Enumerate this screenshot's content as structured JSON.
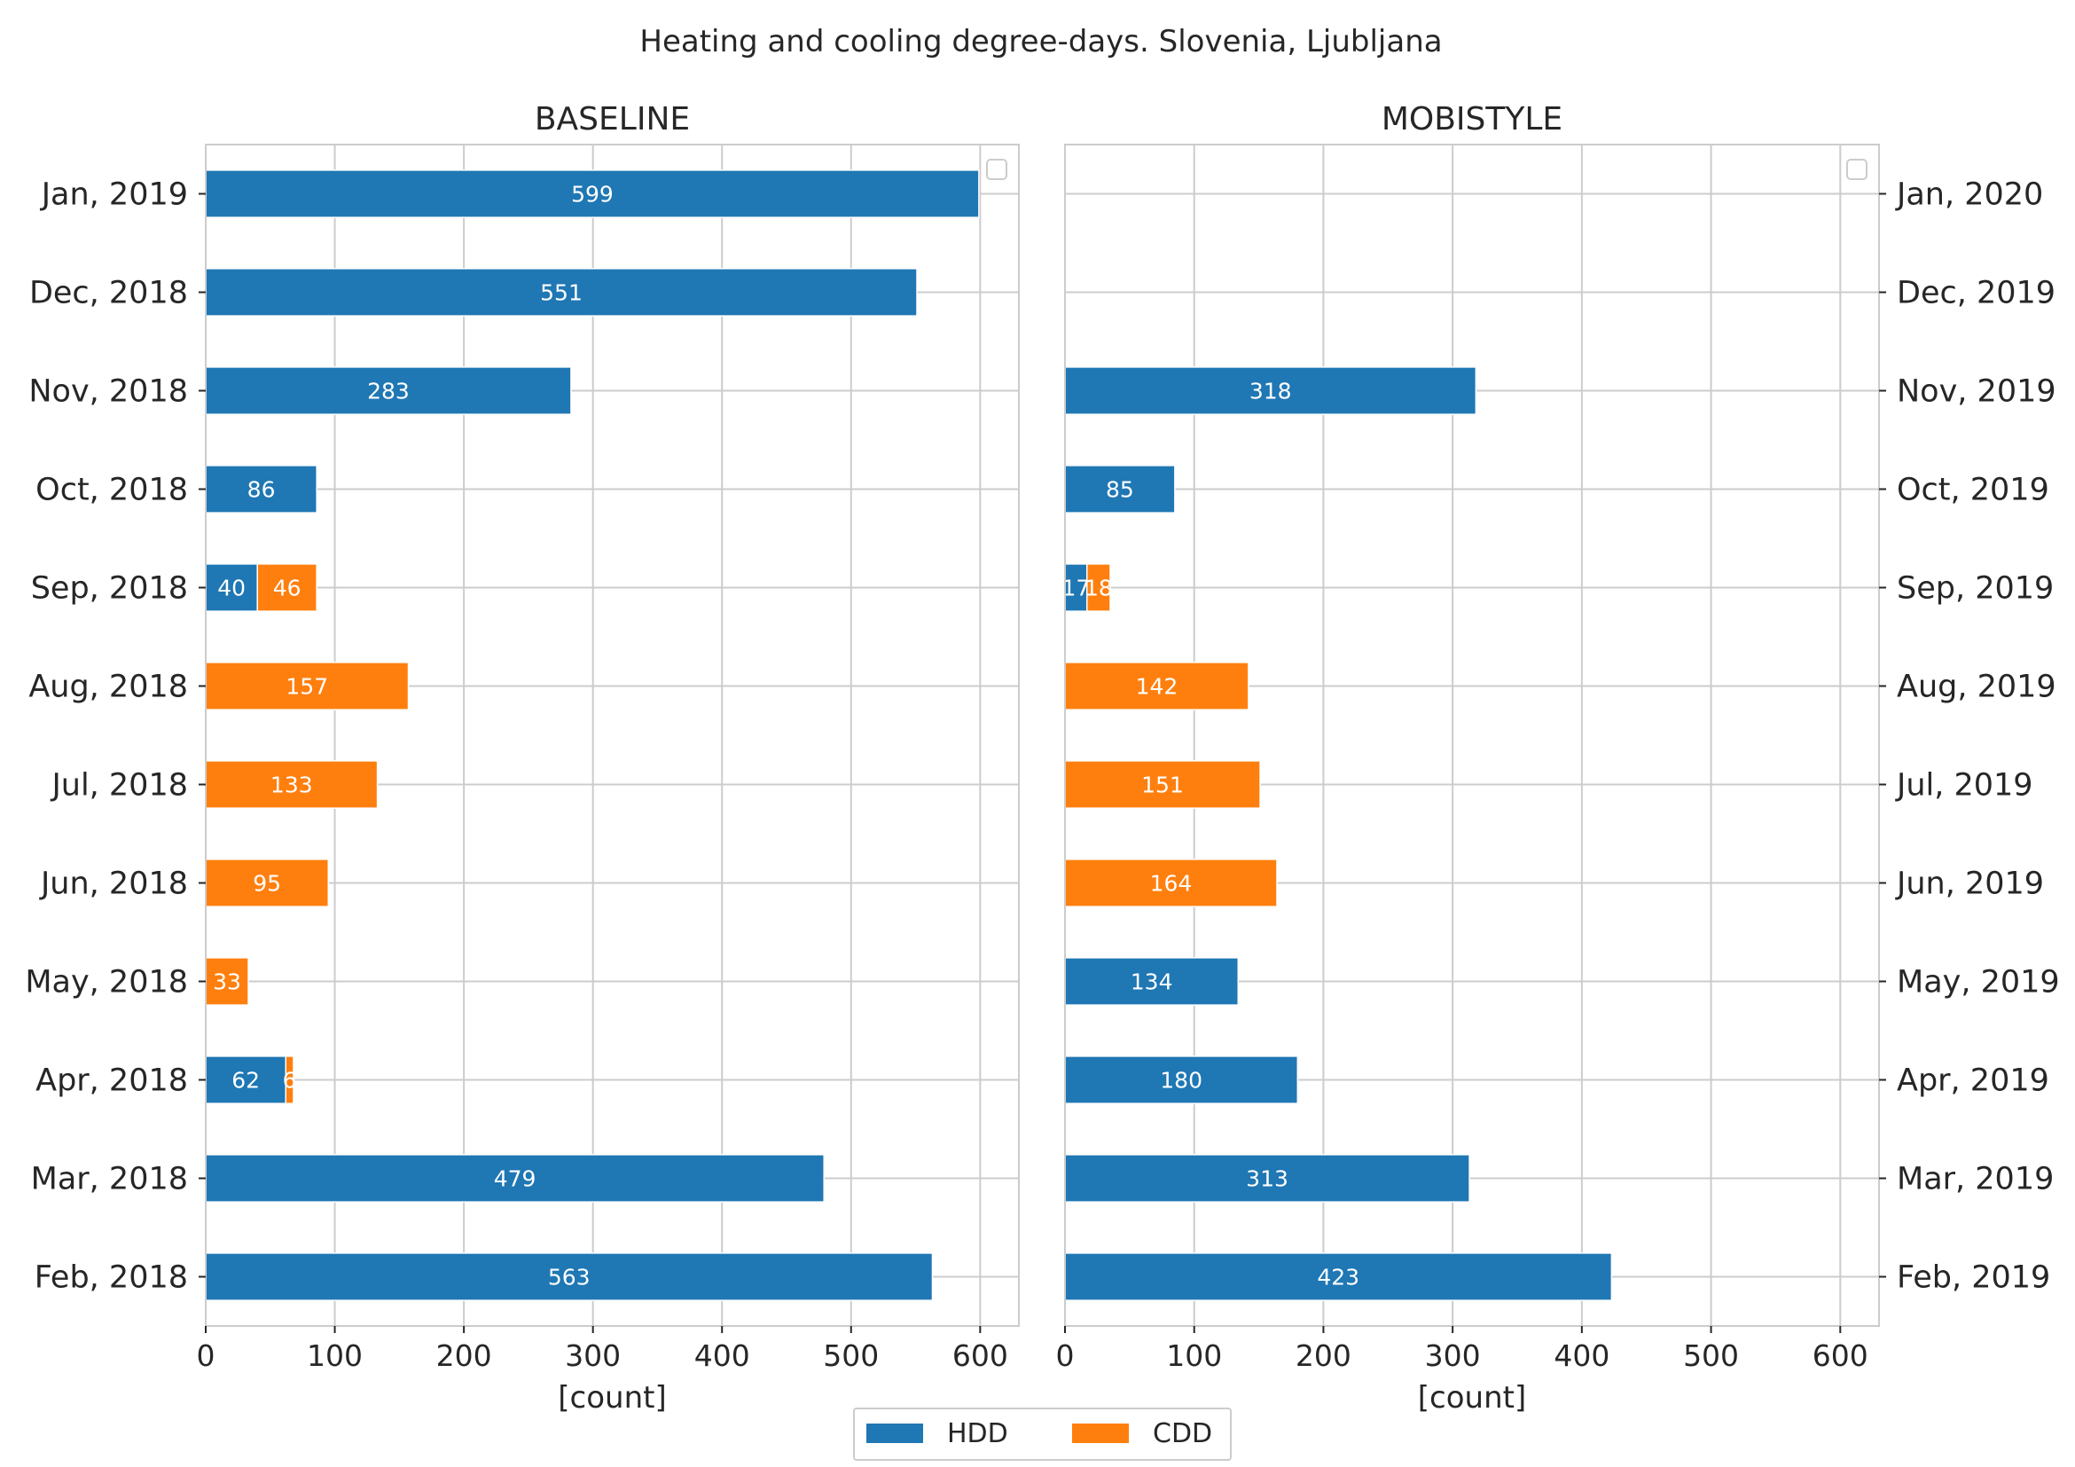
{
  "figure": {
    "title": "Heating and cooling degree-days. Slovenia, Ljubljana"
  },
  "colors": {
    "hdd": "#1f77b4",
    "cdd": "#ff7f0e",
    "grid": "#cccccc",
    "frame": "#cccccc",
    "text": "#262626",
    "bar_label": "#ffffff"
  },
  "legend": {
    "placement": "bottom-center",
    "items": [
      {
        "key": "hdd",
        "label": "HDD"
      },
      {
        "key": "cdd",
        "label": "CDD"
      }
    ]
  },
  "chart_data": [
    {
      "type": "bar",
      "orientation": "horizontal",
      "stacked": true,
      "title": "BASELINE",
      "xlabel": "[count]",
      "xlim": [
        0,
        630
      ],
      "xticks": [
        0,
        100,
        200,
        300,
        400,
        500,
        600
      ],
      "ytick_side": "left",
      "grid": true,
      "categories": [
        "Feb, 2018",
        "Mar, 2018",
        "Apr, 2018",
        "May, 2018",
        "Jun, 2018",
        "Jul, 2018",
        "Aug, 2018",
        "Sep, 2018",
        "Oct, 2018",
        "Nov, 2018",
        "Dec, 2018",
        "Jan, 2019"
      ],
      "series": [
        {
          "name": "HDD",
          "color_key": "hdd",
          "values": [
            563,
            479,
            62,
            0,
            0,
            0,
            0,
            40,
            86,
            283,
            551,
            599
          ]
        },
        {
          "name": "CDD",
          "color_key": "cdd",
          "values": [
            0,
            0,
            6,
            33,
            95,
            133,
            157,
            46,
            0,
            0,
            0,
            0
          ]
        }
      ]
    },
    {
      "type": "bar",
      "orientation": "horizontal",
      "stacked": true,
      "title": "MOBISTYLE",
      "xlabel": "[count]",
      "xlim": [
        0,
        630
      ],
      "xticks": [
        0,
        100,
        200,
        300,
        400,
        500,
        600
      ],
      "ytick_side": "right",
      "grid": true,
      "categories": [
        "Feb, 2019",
        "Mar, 2019",
        "Apr, 2019",
        "May, 2019",
        "Jun, 2019",
        "Jul, 2019",
        "Aug, 2019",
        "Sep, 2019",
        "Oct, 2019",
        "Nov, 2019",
        "Dec, 2019",
        "Jan, 2020"
      ],
      "series": [
        {
          "name": "HDD",
          "color_key": "hdd",
          "values": [
            423,
            313,
            180,
            134,
            0,
            0,
            0,
            17,
            85,
            318,
            0,
            0
          ]
        },
        {
          "name": "CDD",
          "color_key": "cdd",
          "values": [
            0,
            0,
            0,
            0,
            164,
            151,
            142,
            18,
            0,
            0,
            0,
            0
          ]
        }
      ]
    }
  ]
}
